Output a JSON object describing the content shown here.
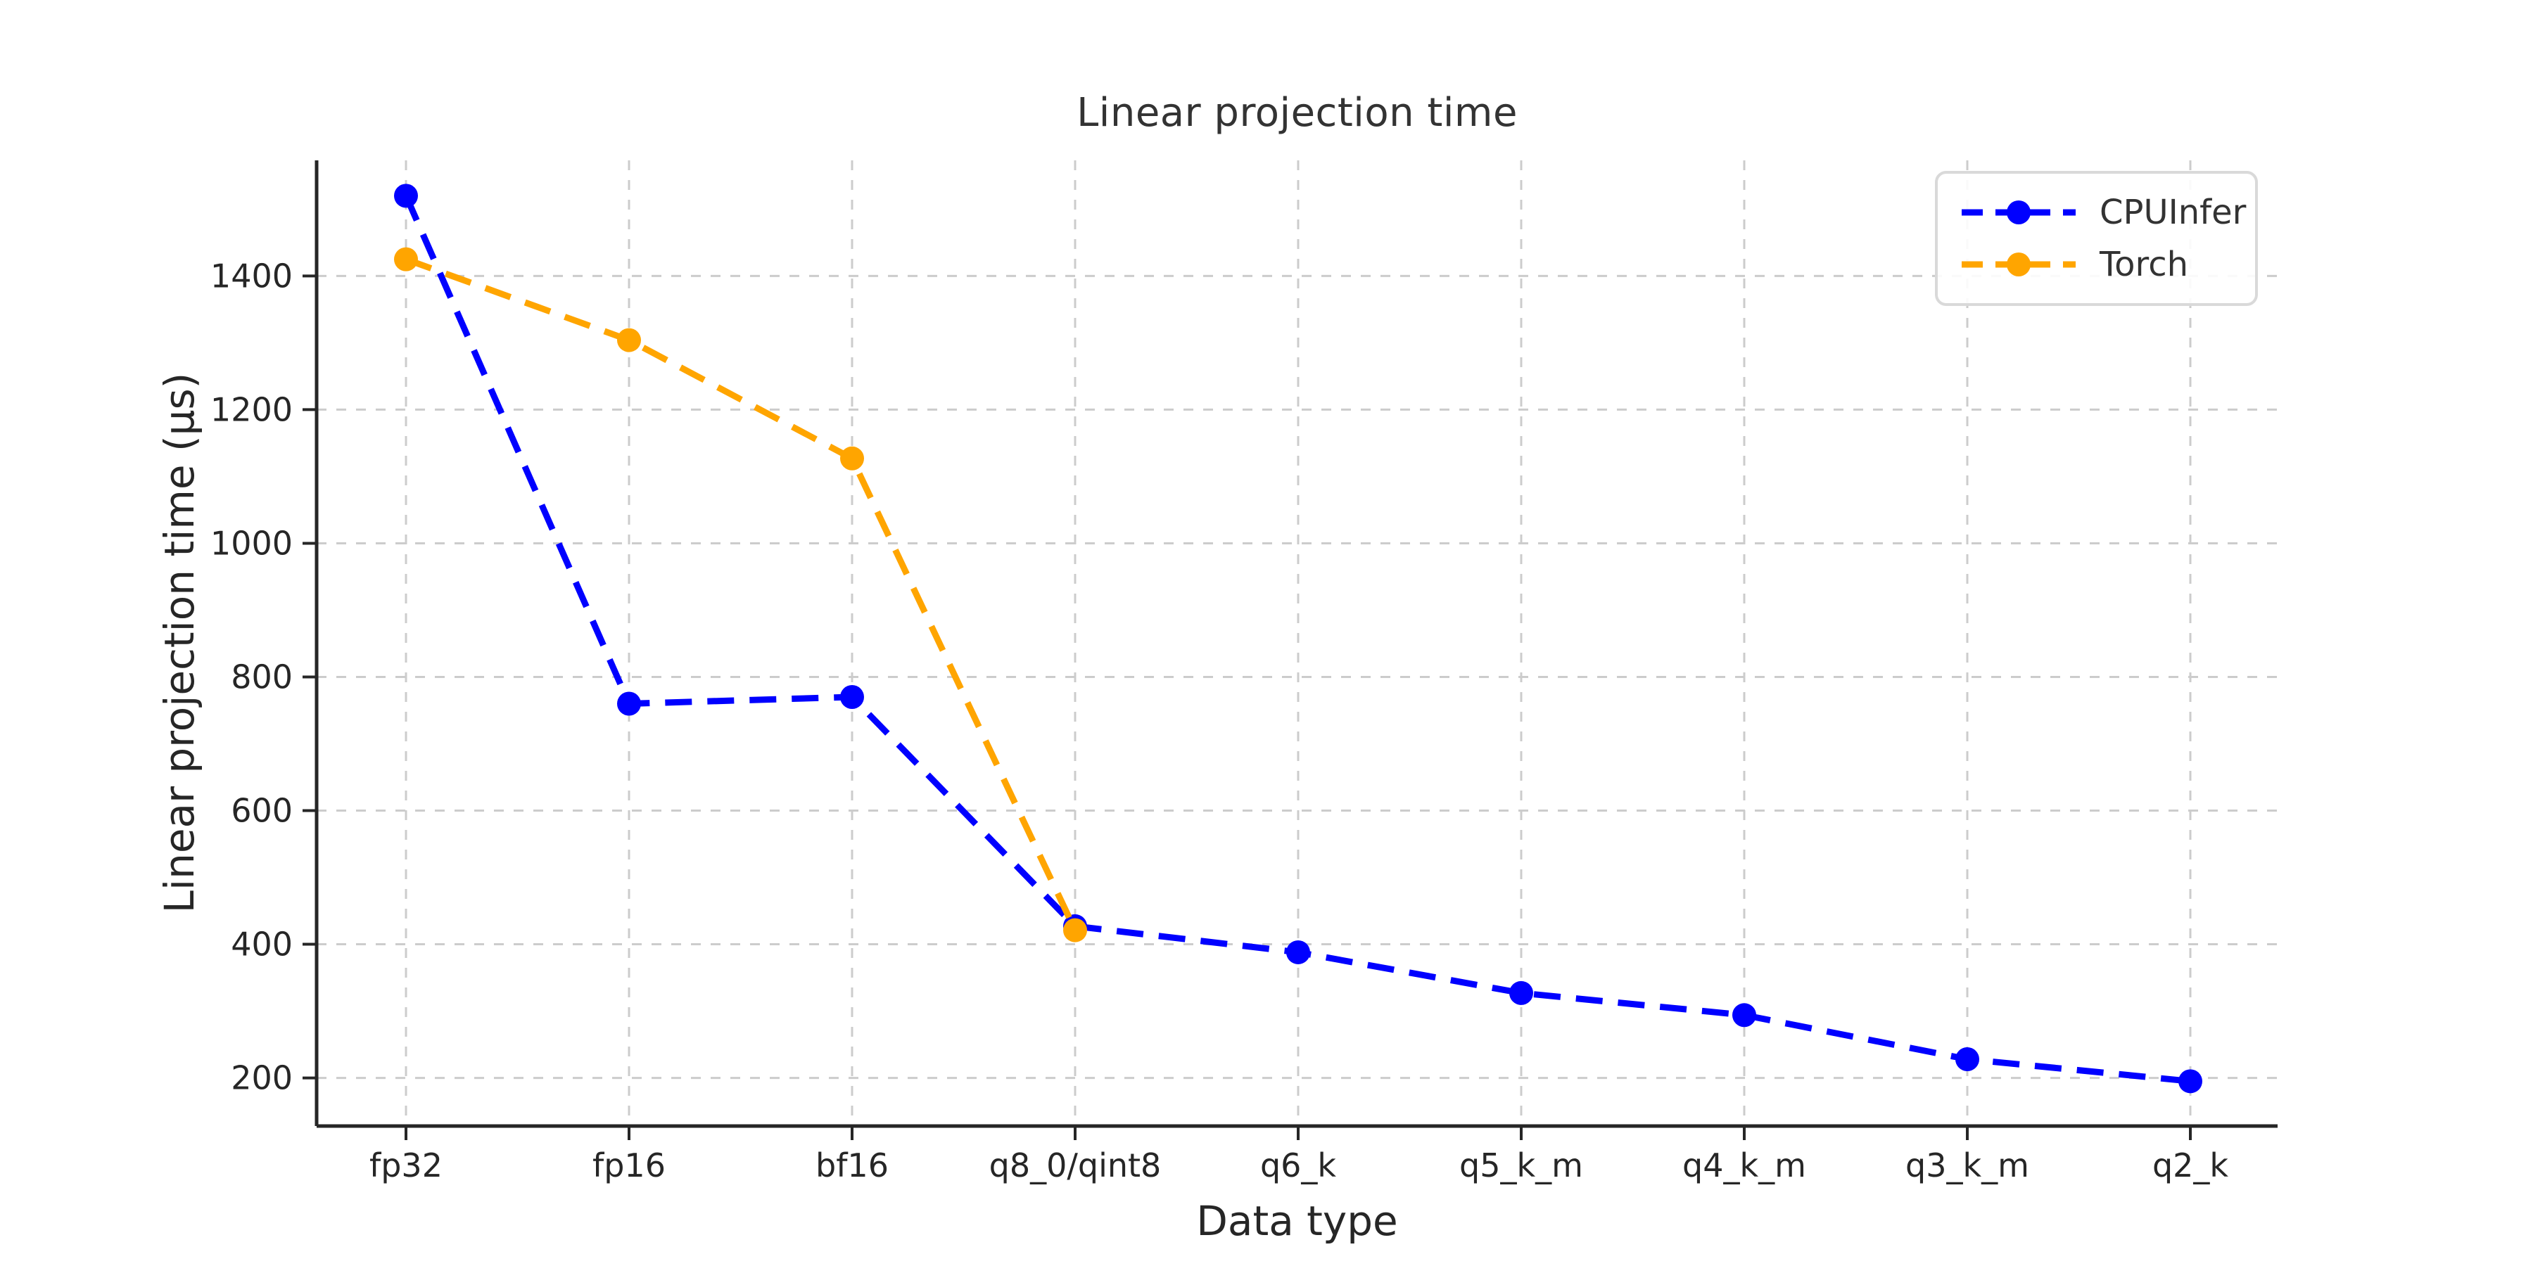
{
  "figure": {
    "title": "Linear projection time",
    "xlabel": "Data type",
    "ylabel": "Linear projection time (μs)"
  },
  "legend": {
    "position": "upper right",
    "items": [
      {
        "label": "CPUInfer",
        "color": "#0000ff"
      },
      {
        "label": "Torch",
        "color": "#ffa500"
      }
    ]
  },
  "chart_data": {
    "type": "line",
    "title": "Linear projection time",
    "xlabel": "Data type",
    "ylabel": "Linear projection time (μs)",
    "categories": [
      "fp32",
      "fp16",
      "bf16",
      "q8_0/qint8",
      "q6_k",
      "q5_k_m",
      "q4_k_m",
      "q3_k_m",
      "q2_k"
    ],
    "series": [
      {
        "name": "CPUInfer",
        "color": "#0000ff",
        "linestyle": "dashed",
        "marker": "circle",
        "values": [
          1520,
          760,
          770,
          427,
          388,
          327,
          294,
          228,
          195
        ]
      },
      {
        "name": "Torch",
        "color": "#ffa500",
        "linestyle": "dashed",
        "marker": "circle",
        "values": [
          1425,
          1304,
          1127,
          421,
          null,
          null,
          null,
          null,
          null
        ]
      }
    ],
    "yticks": [
      200,
      400,
      600,
      800,
      1000,
      1200,
      1400
    ],
    "ylim": [
      128,
      1573
    ],
    "grid": true,
    "grid_style": "dashed",
    "legend_position": "upper right"
  },
  "colors": {
    "background": "#ffffff",
    "grid": "#cccccc",
    "spine": "#262626",
    "tick_text": "#262626",
    "title_text": "#333333"
  }
}
